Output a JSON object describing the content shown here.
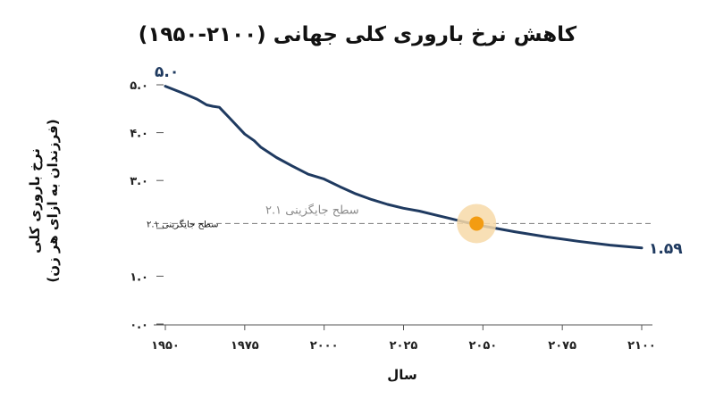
{
  "chart_data": {
    "type": "line",
    "title": "کاهش نرخ باروری کلی جهانی (۲۱۰۰-۱۹۵۰)",
    "xlabel": "سال",
    "ylabel_line1": "نرخ باروری کلی",
    "ylabel_line2": "(فرزندان به ازای هر زن)",
    "xlim": [
      1950,
      2100
    ],
    "ylim": [
      0,
      5
    ],
    "x_ticks": [
      1950,
      1975,
      2000,
      2025,
      2050,
      2075,
      2100
    ],
    "x_tick_labels": [
      "۱۹۵۰",
      "۱۹۷۵",
      "۲۰۰۰",
      "۲۰۲۵",
      "۲۰۵۰",
      "۲۰۷۵",
      "۲۱۰۰"
    ],
    "y_ticks": [
      0,
      1,
      2,
      3,
      4,
      5
    ],
    "y_tick_labels": [
      "۰.۰",
      "۱.۰",
      "",
      "۳.۰",
      "۴.۰",
      "۵.۰"
    ],
    "grid": false,
    "series": [
      {
        "color": "#1f3a60",
        "x": [
          1950,
          1955,
          1960,
          1963,
          1965,
          1967,
          1970,
          1975,
          1978,
          1980,
          1985,
          1990,
          1995,
          2000,
          2005,
          2010,
          2015,
          2020,
          2025,
          2030,
          2035,
          2040,
          2045,
          2050,
          2060,
          2070,
          2080,
          2090,
          2100
        ],
        "y": [
          4.97,
          4.84,
          4.7,
          4.58,
          4.55,
          4.53,
          4.32,
          3.97,
          3.83,
          3.7,
          3.48,
          3.3,
          3.13,
          3.03,
          2.87,
          2.72,
          2.6,
          2.5,
          2.42,
          2.36,
          2.28,
          2.2,
          2.12,
          2.05,
          1.93,
          1.82,
          1.73,
          1.65,
          1.59
        ]
      }
    ],
    "start_label": "۵.۰",
    "end_label": "۱.۵۹",
    "reference_line": {
      "y": 2.1,
      "label": "سطح جایگزینی ۲.۱",
      "tick_label": "سطح جایگزینی ۲.۱",
      "color": "#8a8a8a"
    },
    "highlight": {
      "x": 2048,
      "y": 2.1,
      "color": "#f39c12",
      "halo_color": "#f7d9a8"
    }
  }
}
